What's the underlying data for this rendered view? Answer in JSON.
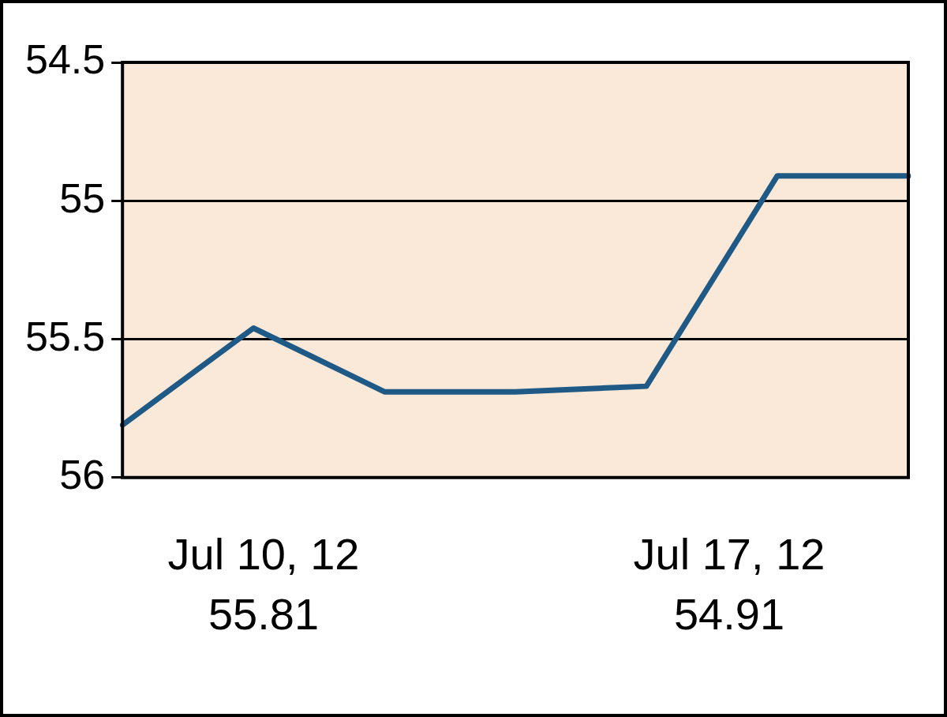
{
  "chart_data": {
    "type": "line",
    "categories": [
      null,
      null,
      null,
      null,
      null,
      null,
      null
    ],
    "series": [
      {
        "color": "#1f5a87",
        "values": [
          55.81,
          55.46,
          55.69,
          55.69,
          55.67,
          54.91,
          54.91
        ]
      }
    ],
    "ylim": [
      56,
      54.5
    ],
    "yticks": [
      54.5,
      55,
      55.5,
      56
    ],
    "grid": "y",
    "tick_labels": "y",
    "legend": false,
    "marker": "none",
    "line_style": "solid",
    "annotations": [
      "Jul 10, 12\n55.81",
      "Jul 17, 12\n54.91"
    ]
  }
}
